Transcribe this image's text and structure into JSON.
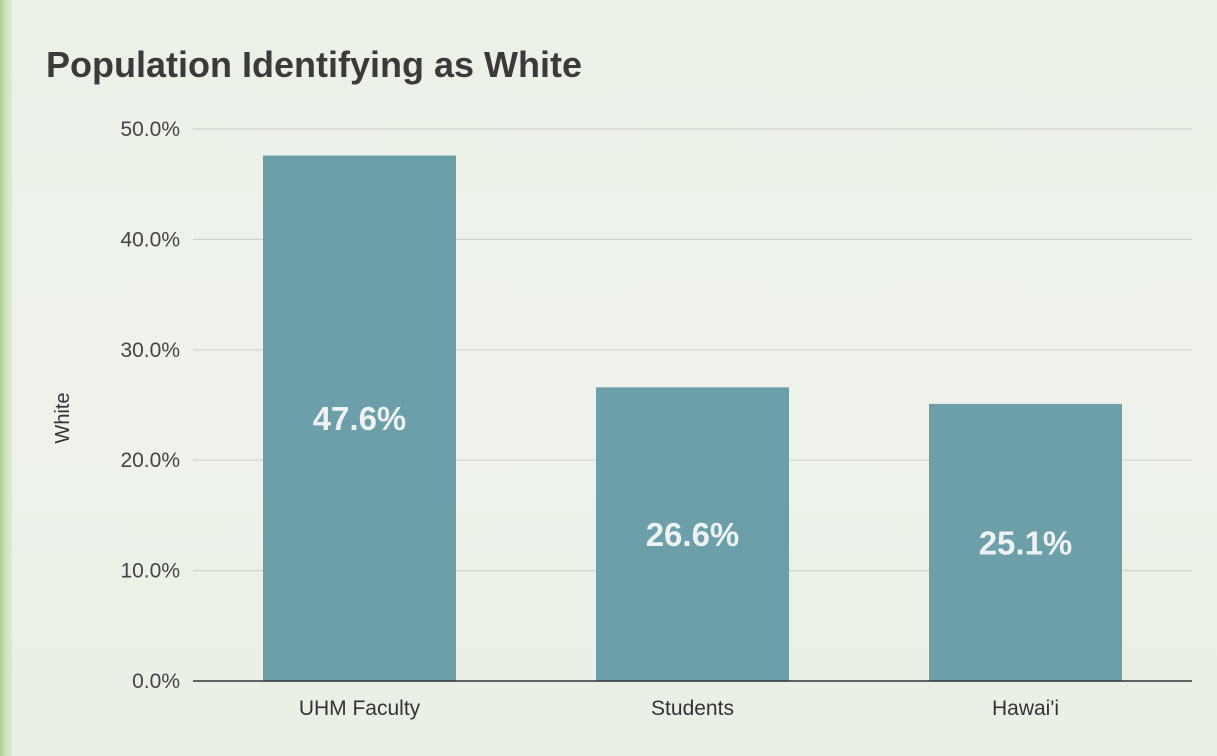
{
  "chart_data": {
    "type": "bar",
    "title": "Population Identifying as White",
    "ylabel": "White",
    "xlabel": "",
    "categories": [
      "UHM Faculty",
      "Students",
      "Hawai'i"
    ],
    "values": [
      47.6,
      26.6,
      25.1
    ],
    "data_labels": [
      "47.6%",
      "26.6%",
      "25.1%"
    ],
    "ylim": [
      0,
      50
    ],
    "yticks": [
      0,
      10,
      20,
      30,
      40,
      50
    ],
    "ytick_labels": [
      "0.0%",
      "10.0%",
      "20.0%",
      "30.0%",
      "40.0%",
      "50.0%"
    ],
    "grid": true,
    "legend": "none",
    "bar_color": "#6c9faa"
  }
}
